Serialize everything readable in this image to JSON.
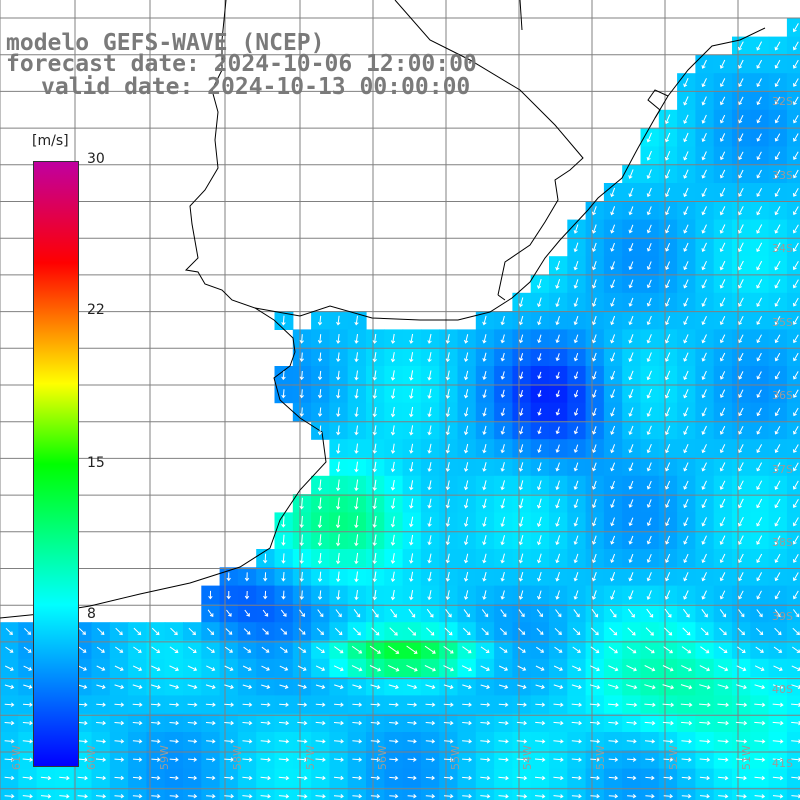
{
  "title": {
    "line1": "modelo GEFS-WAVE (NCEP)",
    "line2": "forecast date: 2024-10-06 12:00:00",
    "line3": "valid date: 2024-10-13 00:00:00"
  },
  "colorbar": {
    "unit": "[m/s]",
    "min": 0,
    "max": 30,
    "ticks": [
      {
        "label": "30",
        "value": 30
      },
      {
        "label": "22",
        "value": 22
      },
      {
        "label": "15",
        "value": 15
      },
      {
        "label": "8",
        "value": 8
      }
    ],
    "stops": [
      {
        "value": 0,
        "color": "#0000ff"
      },
      {
        "value": 8,
        "color": "#00ffff"
      },
      {
        "value": 15,
        "color": "#00ff00"
      },
      {
        "value": 19,
        "color": "#ffff00"
      },
      {
        "value": 22,
        "color": "#ff8000"
      },
      {
        "value": 25,
        "color": "#ff0000"
      },
      {
        "value": 30,
        "color": "#c000a0"
      }
    ]
  },
  "axes": {
    "lon_labels": [
      "61W",
      "60W",
      "59W",
      "58W",
      "57W",
      "56W",
      "55W",
      "54W",
      "53W",
      "52W",
      "51W"
    ],
    "lat_labels": [
      "32S",
      "33S",
      "34S",
      "35S",
      "36S",
      "37S",
      "38S",
      "39S",
      "40S",
      "41S"
    ]
  },
  "colors": {
    "land": "#ffffff",
    "coast": "#000000",
    "grid": "#808080",
    "vectors": "#ffffff",
    "title": "#7a7a7a"
  }
}
